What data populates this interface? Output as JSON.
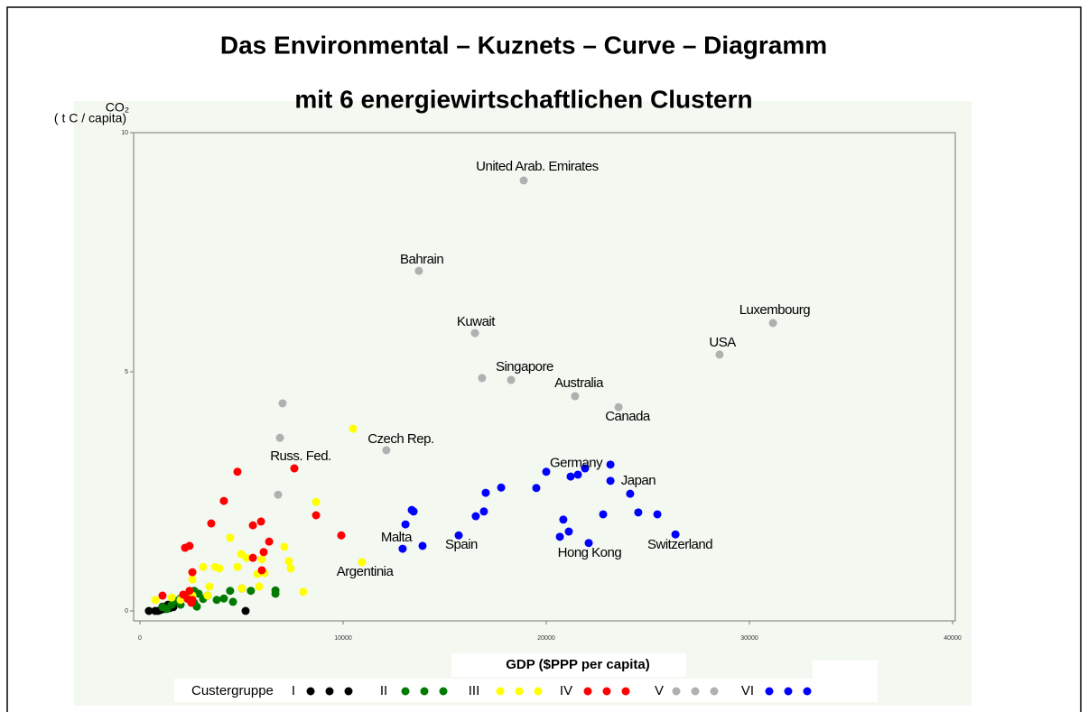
{
  "chart_data": {
    "type": "scatter",
    "title": "Das Environmental – Kuznets – Curve – Diagramm",
    "subtitle": "mit 6 energiewirtschaftlichen Clustern",
    "ylabel": "CO₂",
    "yunit": "( t C / capita)",
    "xlabel": "GDP ($PPP per capita)",
    "legend_title": "Custergruppe",
    "xlim": [
      0,
      40000
    ],
    "xticks": [
      0,
      10000,
      20000,
      30000,
      40000
    ],
    "ylim": [
      0,
      10
    ],
    "yticks": [
      0,
      5,
      10
    ],
    "series": [
      {
        "name": "I",
        "color": "#000000",
        "x": [
          440,
          750,
          1020,
          1240,
          1470,
          1640,
          1110,
          1380,
          890,
          5200
        ],
        "y": [
          0,
          0,
          0.02,
          0.04,
          0.06,
          0.08,
          0.09,
          0.13,
          0,
          0
        ]
      },
      {
        "name": "II",
        "color": "#007a00",
        "x": [
          1110,
          1560,
          1780,
          2000,
          2220,
          2440,
          2670,
          2890,
          3110,
          2670,
          3330,
          3780,
          4130,
          4440,
          4580,
          5020,
          5460,
          6670,
          6670,
          2800,
          1330,
          2000
        ],
        "y": [
          0.08,
          0.13,
          0.21,
          0.26,
          0.32,
          0.28,
          0.17,
          0.36,
          0.25,
          0.42,
          0.32,
          0.23,
          0.26,
          0.42,
          0.19,
          0.47,
          0.42,
          0.43,
          0.36,
          0.09,
          0.04,
          0.13
        ]
      },
      {
        "name": "III",
        "color": "#ffff00",
        "x": [
          760,
          1560,
          2580,
          3110,
          3330,
          3420,
          3690,
          3910,
          4440,
          4800,
          4980,
          5240,
          5020,
          5780,
          5870,
          6000,
          6130,
          7110,
          7330,
          7420,
          8040,
          8670,
          10490,
          10930,
          2580,
          2000
        ],
        "y": [
          0.23,
          0.28,
          0.66,
          0.92,
          0.32,
          0.51,
          0.92,
          0.89,
          1.53,
          0.92,
          1.19,
          1.11,
          0.47,
          0.77,
          0.51,
          1.08,
          0.79,
          1.34,
          1.04,
          0.89,
          0.4,
          2.28,
          3.81,
          1.02,
          0.32,
          0.23
        ]
      },
      {
        "name": "IV",
        "color": "#ff0000",
        "x": [
          1110,
          2130,
          2440,
          2580,
          2220,
          2440,
          2580,
          3510,
          4130,
          4800,
          5560,
          5560,
          6000,
          6090,
          5960,
          6360,
          7600,
          8670,
          9910,
          2350,
          2530
        ],
        "y": [
          0.32,
          0.34,
          0.42,
          0.23,
          1.32,
          1.36,
          0.81,
          1.83,
          2.3,
          2.91,
          1.11,
          1.79,
          0.85,
          1.23,
          1.87,
          1.45,
          2.98,
          2.0,
          1.58,
          0.25,
          0.17
        ]
      },
      {
        "name": "V",
        "color": "#b0b0b0",
        "x": [
          7020,
          6890,
          6800,
          12130,
          18890,
          13730,
          16490,
          16840,
          18270,
          21420,
          23560,
          28530,
          31160
        ],
        "y": [
          4.34,
          3.62,
          2.43,
          3.36,
          9.0,
          7.11,
          5.81,
          4.87,
          4.83,
          4.49,
          4.26,
          5.36,
          6.02
        ]
      },
      {
        "name": "VI",
        "color": "#0000ff",
        "x": [
          12930,
          13070,
          13380,
          13470,
          13910,
          15690,
          16530,
          16930,
          17020,
          17780,
          19510,
          20000,
          21200,
          21560,
          21910,
          23160,
          23160,
          24130,
          22800,
          24530,
          25470,
          26360,
          20670,
          20840,
          21110,
          22090
        ],
        "y": [
          1.3,
          1.81,
          2.11,
          2.08,
          1.36,
          1.58,
          1.98,
          2.08,
          2.47,
          2.58,
          2.57,
          2.91,
          2.81,
          2.85,
          2.98,
          2.72,
          3.06,
          2.45,
          2.02,
          2.06,
          2.02,
          1.6,
          1.55,
          1.91,
          1.66,
          1.42
        ]
      }
    ],
    "annotations": [
      {
        "text": "United Arab. Emirates",
        "x": 19550,
        "y": 9.28
      },
      {
        "text": "Bahrain",
        "x": 13870,
        "y": 7.34
      },
      {
        "text": "Kuwait",
        "x": 16530,
        "y": 6.04
      },
      {
        "text": "Singapore",
        "x": 18930,
        "y": 5.09
      },
      {
        "text": "Australia",
        "x": 21600,
        "y": 4.75
      },
      {
        "text": "Canada",
        "x": 24000,
        "y": 4.06
      },
      {
        "text": "USA",
        "x": 28670,
        "y": 5.6
      },
      {
        "text": "Luxembourg",
        "x": 31240,
        "y": 6.28
      },
      {
        "text": "Czech Rep.",
        "x": 12840,
        "y": 3.58
      },
      {
        "text": "Russ. Fed.",
        "x": 7910,
        "y": 3.23
      },
      {
        "text": "Germany",
        "x": 21470,
        "y": 3.08
      },
      {
        "text": "Japan",
        "x": 24530,
        "y": 2.72
      },
      {
        "text": "Malta",
        "x": 12620,
        "y": 1.53
      },
      {
        "text": "Spain",
        "x": 15820,
        "y": 1.38
      },
      {
        "text": "Hong Kong",
        "x": 22130,
        "y": 1.21
      },
      {
        "text": "Switzerland",
        "x": 26580,
        "y": 1.38
      },
      {
        "text": "Argentinia",
        "x": 11070,
        "y": 0.81
      }
    ]
  }
}
